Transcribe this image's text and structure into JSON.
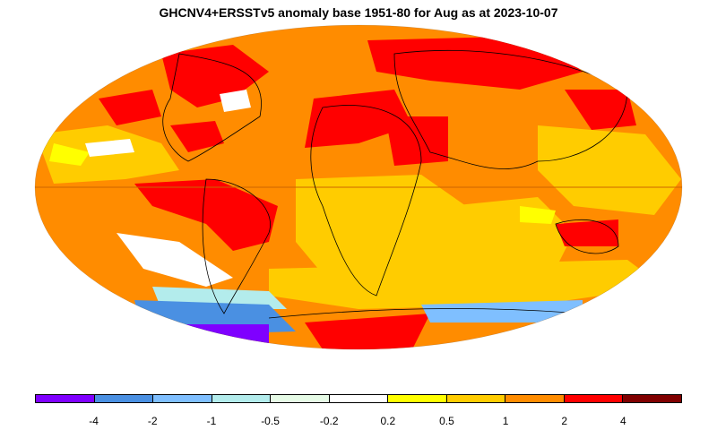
{
  "title": "GHCNV4+ERSSTv5 anomaly base 1951-80 for Aug as at 2023-10-07",
  "legend": {
    "colors": [
      "#7f00ff",
      "#4a90e2",
      "#7fbfff",
      "#b3ecec",
      "#e6fbe6",
      "#ffffff",
      "#ffff00",
      "#ffcc00",
      "#ff8c00",
      "#ff0000",
      "#800000"
    ],
    "tick_labels": [
      "-4",
      "-2",
      "-1",
      "-0.5",
      "-0.2",
      "0.2",
      "0.5",
      "1",
      "2",
      "4"
    ]
  },
  "map": {
    "ocean_base_color": "#ff8c00",
    "regions": [
      {
        "name": "north-america-hot",
        "color": "#ff0000"
      },
      {
        "name": "greenland-warm",
        "color": "#ffcc00"
      },
      {
        "name": "north-atlantic-cool",
        "color": "#ffffff"
      },
      {
        "name": "siberia-hot",
        "color": "#ff0000"
      },
      {
        "name": "europe-hot",
        "color": "#ff0000"
      },
      {
        "name": "south-america-hot",
        "color": "#ff0000"
      },
      {
        "name": "australia-hot",
        "color": "#ff0000"
      },
      {
        "name": "africa-warm",
        "color": "#ffcc00"
      },
      {
        "name": "south-atlantic-cool",
        "color": "#ffffff"
      },
      {
        "name": "antarctica-cold",
        "color": "#4a90e2"
      },
      {
        "name": "antarctica-very-cold",
        "color": "#7f00ff"
      },
      {
        "name": "antarctica-hot",
        "color": "#ff0000"
      }
    ]
  }
}
